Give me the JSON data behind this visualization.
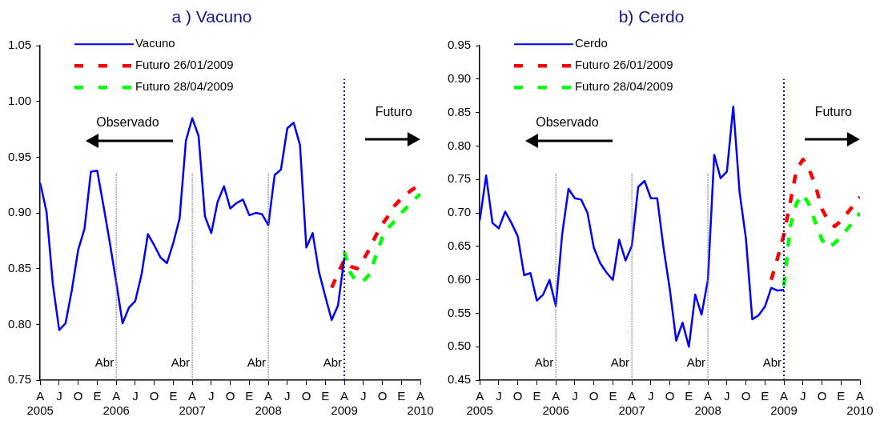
{
  "chart_data": [
    {
      "type": "line",
      "title": "a ) Vacuno",
      "x": [
        "2005-04",
        "2005-05",
        "2005-06",
        "2005-07",
        "2005-08",
        "2005-09",
        "2005-10",
        "2005-11",
        "2005-12",
        "2006-01",
        "2006-02",
        "2006-03",
        "2006-04",
        "2006-05",
        "2006-06",
        "2006-07",
        "2006-08",
        "2006-09",
        "2006-10",
        "2006-11",
        "2006-12",
        "2007-01",
        "2007-02",
        "2007-03",
        "2007-04",
        "2007-05",
        "2007-06",
        "2007-07",
        "2007-08",
        "2007-09",
        "2007-10",
        "2007-11",
        "2007-12",
        "2008-01",
        "2008-02",
        "2008-03",
        "2008-04",
        "2008-05",
        "2008-06",
        "2008-07",
        "2008-08",
        "2008-09",
        "2008-10",
        "2008-11",
        "2008-12",
        "2009-01",
        "2009-02",
        "2009-03",
        "2009-04",
        "2009-05",
        "2009-06",
        "2009-07",
        "2009-08",
        "2009-09",
        "2009-10",
        "2009-11",
        "2009-12",
        "2010-01",
        "2010-02",
        "2010-03",
        "2010-04"
      ],
      "series": [
        {
          "name": "Vacuno",
          "color": "#0000ff",
          "line_style": "solid",
          "values": [
            0.927,
            0.901,
            0.836,
            0.795,
            0.801,
            0.831,
            0.867,
            0.886,
            0.937,
            0.938,
            0.906,
            0.873,
            0.838,
            0.801,
            0.815,
            0.821,
            0.845,
            0.881,
            0.871,
            0.86,
            0.855,
            0.873,
            0.895,
            0.965,
            0.985,
            0.969,
            0.897,
            0.882,
            0.91,
            0.924,
            0.904,
            0.909,
            0.912,
            0.898,
            0.9,
            0.899,
            0.889,
            0.934,
            0.939,
            0.976,
            0.981,
            0.961,
            0.869,
            0.882,
            0.847,
            0.825,
            0.804,
            0.817,
            0.86,
            null,
            null,
            null,
            null,
            null,
            null,
            null,
            null,
            null,
            null,
            null,
            null
          ]
        },
        {
          "name": "Futuro 26/01/2009",
          "color": "#ff0000",
          "line_style": "dashed",
          "values": [
            null,
            null,
            null,
            null,
            null,
            null,
            null,
            null,
            null,
            null,
            null,
            null,
            null,
            null,
            null,
            null,
            null,
            null,
            null,
            null,
            null,
            null,
            null,
            null,
            null,
            null,
            null,
            null,
            null,
            null,
            null,
            null,
            null,
            null,
            null,
            null,
            null,
            null,
            null,
            null,
            null,
            null,
            null,
            null,
            null,
            null,
            0.833,
            0.846,
            0.858,
            0.852,
            0.85,
            0.858,
            0.868,
            0.88,
            0.89,
            0.898,
            0.907,
            0.913,
            0.918,
            0.922,
            0.924
          ]
        },
        {
          "name": "Futuro 28/04/2009",
          "color": "#00ff00",
          "line_style": "dashed",
          "values": [
            null,
            null,
            null,
            null,
            null,
            null,
            null,
            null,
            null,
            null,
            null,
            null,
            null,
            null,
            null,
            null,
            null,
            null,
            null,
            null,
            null,
            null,
            null,
            null,
            null,
            null,
            null,
            null,
            null,
            null,
            null,
            null,
            null,
            null,
            null,
            null,
            null,
            null,
            null,
            null,
            null,
            null,
            null,
            null,
            null,
            null,
            null,
            null,
            0.865,
            0.846,
            0.838,
            0.839,
            0.845,
            0.862,
            0.878,
            0.887,
            0.893,
            0.9,
            0.906,
            0.912,
            0.917
          ]
        }
      ],
      "xlim": [
        "2005-04",
        "2010-04"
      ],
      "xticks": [
        {
          "value": "2005-04",
          "label": "A\n2005"
        },
        {
          "value": "2005-07",
          "label": "J"
        },
        {
          "value": "2005-10",
          "label": "O"
        },
        {
          "value": "2006-01",
          "label": "E"
        },
        {
          "value": "2006-04",
          "label": "A\n2006"
        },
        {
          "value": "2006-07",
          "label": "J"
        },
        {
          "value": "2006-10",
          "label": "O"
        },
        {
          "value": "2007-01",
          "label": "E"
        },
        {
          "value": "2007-04",
          "label": "A\n2007"
        },
        {
          "value": "2007-07",
          "label": "J"
        },
        {
          "value": "2007-10",
          "label": "O"
        },
        {
          "value": "2008-01",
          "label": "E"
        },
        {
          "value": "2008-04",
          "label": "A\n2008"
        },
        {
          "value": "2008-07",
          "label": "J"
        },
        {
          "value": "2008-10",
          "label": "O"
        },
        {
          "value": "2009-01",
          "label": "E"
        },
        {
          "value": "2009-04",
          "label": "A\n2009"
        },
        {
          "value": "2009-07",
          "label": "J"
        },
        {
          "value": "2009-10",
          "label": "O"
        },
        {
          "value": "2010-01",
          "label": "E"
        },
        {
          "value": "2010-04",
          "label": "A\n2010"
        }
      ],
      "ylim": [
        0.75,
        1.05
      ],
      "yticks": [
        {
          "value": 0.75,
          "label": "0.75"
        },
        {
          "value": 0.8,
          "label": "0.80"
        },
        {
          "value": 0.85,
          "label": "0.85"
        },
        {
          "value": 0.9,
          "label": "0.90"
        },
        {
          "value": 0.95,
          "label": "0.95"
        },
        {
          "value": 1.0,
          "label": "1.00"
        },
        {
          "value": 1.05,
          "label": "1.05"
        }
      ],
      "ref_lines": [
        {
          "axis": "x",
          "value": "2006-04",
          "label": "Abr",
          "color": "#808080",
          "line_style": "dashed"
        },
        {
          "axis": "x",
          "value": "2007-04",
          "label": "Abr",
          "color": "#808080",
          "line_style": "dashed"
        },
        {
          "axis": "x",
          "value": "2008-04",
          "label": "Abr",
          "color": "#808080",
          "line_style": "dashed"
        },
        {
          "axis": "x",
          "value": "2009-04",
          "label": "Abr",
          "color": "#000080",
          "line_style": "dotted"
        }
      ],
      "annotations": [
        "Observado",
        "Futuro"
      ],
      "legend": "top left",
      "grid": false,
      "marker": "none"
    },
    {
      "type": "line",
      "title": "b) Cerdo",
      "x": [
        "2005-04",
        "2005-05",
        "2005-06",
        "2005-07",
        "2005-08",
        "2005-09",
        "2005-10",
        "2005-11",
        "2005-12",
        "2006-01",
        "2006-02",
        "2006-03",
        "2006-04",
        "2006-05",
        "2006-06",
        "2006-07",
        "2006-08",
        "2006-09",
        "2006-10",
        "2006-11",
        "2006-12",
        "2007-01",
        "2007-02",
        "2007-03",
        "2007-04",
        "2007-05",
        "2007-06",
        "2007-07",
        "2007-08",
        "2007-09",
        "2007-10",
        "2007-11",
        "2007-12",
        "2008-01",
        "2008-02",
        "2008-03",
        "2008-04",
        "2008-05",
        "2008-06",
        "2008-07",
        "2008-08",
        "2008-09",
        "2008-10",
        "2008-11",
        "2008-12",
        "2009-01",
        "2009-02",
        "2009-03",
        "2009-04",
        "2009-05",
        "2009-06",
        "2009-07",
        "2009-08",
        "2009-09",
        "2009-10",
        "2009-11",
        "2009-12",
        "2010-01",
        "2010-02",
        "2010-03",
        "2010-04"
      ],
      "series": [
        {
          "name": "Cerdo",
          "color": "#0000ff",
          "line_style": "solid",
          "values": [
            0.689,
            0.756,
            0.685,
            0.677,
            0.702,
            0.685,
            0.665,
            0.607,
            0.61,
            0.569,
            0.578,
            0.6,
            0.561,
            0.668,
            0.736,
            0.722,
            0.72,
            0.7,
            0.648,
            0.625,
            0.611,
            0.6,
            0.66,
            0.629,
            0.651,
            0.739,
            0.748,
            0.722,
            0.722,
            0.648,
            0.585,
            0.509,
            0.536,
            0.5,
            0.578,
            0.548,
            0.6,
            0.787,
            0.752,
            0.762,
            0.859,
            0.731,
            0.662,
            0.541,
            0.547,
            0.56,
            0.588,
            0.584,
            0.585,
            null,
            null,
            null,
            null,
            null,
            null,
            null,
            null,
            null,
            null,
            null,
            null
          ]
        },
        {
          "name": "Futuro 26/01/2009",
          "color": "#ff0000",
          "line_style": "dashed",
          "values": [
            null,
            null,
            null,
            null,
            null,
            null,
            null,
            null,
            null,
            null,
            null,
            null,
            null,
            null,
            null,
            null,
            null,
            null,
            null,
            null,
            null,
            null,
            null,
            null,
            null,
            null,
            null,
            null,
            null,
            null,
            null,
            null,
            null,
            null,
            null,
            null,
            null,
            null,
            null,
            null,
            null,
            null,
            null,
            null,
            null,
            null,
            0.6,
            0.633,
            0.668,
            0.716,
            0.765,
            0.78,
            0.765,
            0.74,
            0.706,
            0.688,
            0.68,
            0.688,
            0.7,
            0.712,
            0.724
          ]
        },
        {
          "name": "Futuro 28/04/2009",
          "color": "#00ff00",
          "line_style": "dashed",
          "values": [
            null,
            null,
            null,
            null,
            null,
            null,
            null,
            null,
            null,
            null,
            null,
            null,
            null,
            null,
            null,
            null,
            null,
            null,
            null,
            null,
            null,
            null,
            null,
            null,
            null,
            null,
            null,
            null,
            null,
            null,
            null,
            null,
            null,
            null,
            null,
            null,
            null,
            null,
            null,
            null,
            null,
            null,
            null,
            null,
            null,
            null,
            null,
            null,
            0.591,
            0.68,
            0.715,
            0.728,
            0.712,
            0.685,
            0.66,
            0.648,
            0.655,
            0.664,
            0.676,
            0.688,
            0.7
          ]
        }
      ],
      "xlim": [
        "2005-04",
        "2010-04"
      ],
      "xticks": [
        {
          "value": "2005-04",
          "label": "A\n2005"
        },
        {
          "value": "2005-07",
          "label": "J"
        },
        {
          "value": "2005-10",
          "label": "O"
        },
        {
          "value": "2006-01",
          "label": "E"
        },
        {
          "value": "2006-04",
          "label": "A\n2006"
        },
        {
          "value": "2006-07",
          "label": "J"
        },
        {
          "value": "2006-10",
          "label": "O"
        },
        {
          "value": "2007-01",
          "label": "E"
        },
        {
          "value": "2007-04",
          "label": "A\n2007"
        },
        {
          "value": "2007-07",
          "label": "J"
        },
        {
          "value": "2007-10",
          "label": "O"
        },
        {
          "value": "2008-01",
          "label": "E"
        },
        {
          "value": "2008-04",
          "label": "A\n2008"
        },
        {
          "value": "2008-07",
          "label": "J"
        },
        {
          "value": "2008-10",
          "label": "O"
        },
        {
          "value": "2009-01",
          "label": "E"
        },
        {
          "value": "2009-04",
          "label": "A\n2009"
        },
        {
          "value": "2009-07",
          "label": "J"
        },
        {
          "value": "2009-10",
          "label": "O"
        },
        {
          "value": "2010-01",
          "label": "E"
        },
        {
          "value": "2010-04",
          "label": "A\n2010"
        }
      ],
      "ylim": [
        0.45,
        0.95
      ],
      "yticks": [
        {
          "value": 0.45,
          "label": "0.45"
        },
        {
          "value": 0.5,
          "label": "0.50"
        },
        {
          "value": 0.55,
          "label": "0.55"
        },
        {
          "value": 0.6,
          "label": "0.60"
        },
        {
          "value": 0.65,
          "label": "0.65"
        },
        {
          "value": 0.7,
          "label": "0.70"
        },
        {
          "value": 0.75,
          "label": "0.75"
        },
        {
          "value": 0.8,
          "label": "0.80"
        },
        {
          "value": 0.85,
          "label": "0.85"
        },
        {
          "value": 0.9,
          "label": "0.90"
        },
        {
          "value": 0.95,
          "label": "0.95"
        }
      ],
      "ref_lines": [
        {
          "axis": "x",
          "value": "2006-04",
          "label": "Abr",
          "color": "#808080",
          "line_style": "dashed"
        },
        {
          "axis": "x",
          "value": "2007-04",
          "label": "Abr",
          "color": "#808080",
          "line_style": "dashed"
        },
        {
          "axis": "x",
          "value": "2008-04",
          "label": "Abr",
          "color": "#808080",
          "line_style": "dashed"
        },
        {
          "axis": "x",
          "value": "2009-04",
          "label": "Abr",
          "color": "#000080",
          "line_style": "dotted"
        }
      ],
      "annotations": [
        "Observado",
        "Futuro"
      ],
      "legend": "top left",
      "grid": false,
      "marker": "none"
    }
  ]
}
